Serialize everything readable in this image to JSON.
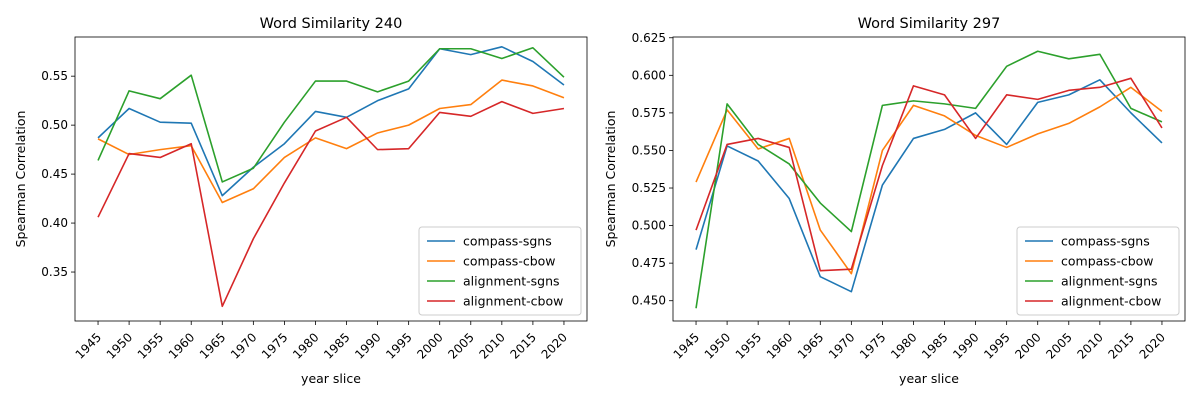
{
  "chart_data": [
    {
      "type": "line",
      "title": "Word Similarity 240",
      "xlabel": "year slice",
      "ylabel": "Spearman Correlation",
      "x": [
        1945,
        1950,
        1955,
        1960,
        1965,
        1970,
        1975,
        1980,
        1985,
        1990,
        1995,
        2000,
        2005,
        2010,
        2015,
        2020
      ],
      "ylim": [
        0.3,
        0.59
      ],
      "yticks": [
        0.35,
        0.4,
        0.45,
        0.5,
        0.55
      ],
      "ytick_labels": [
        "0.35",
        "0.40",
        "0.45",
        "0.50",
        "0.55"
      ],
      "legend": "lower-right",
      "grid": false,
      "series": [
        {
          "name": "compass-sgns",
          "color": "#1f77b4",
          "values": [
            0.487,
            0.517,
            0.503,
            0.502,
            0.428,
            0.457,
            0.481,
            0.514,
            0.508,
            0.525,
            0.537,
            0.578,
            0.572,
            0.58,
            0.565,
            0.541
          ]
        },
        {
          "name": "compass-cbow",
          "color": "#ff7f0e",
          "values": [
            0.486,
            0.47,
            0.475,
            0.479,
            0.421,
            0.435,
            0.467,
            0.487,
            0.476,
            0.492,
            0.5,
            0.517,
            0.521,
            0.546,
            0.54,
            0.528
          ]
        },
        {
          "name": "alignment-sgns",
          "color": "#2ca02c",
          "values": [
            0.464,
            0.535,
            0.527,
            0.551,
            0.442,
            0.456,
            0.503,
            0.545,
            0.545,
            0.534,
            0.545,
            0.578,
            0.578,
            0.568,
            0.579,
            0.549
          ]
        },
        {
          "name": "alignment-cbow",
          "color": "#d62728",
          "values": [
            0.406,
            0.471,
            0.467,
            0.481,
            0.315,
            0.384,
            0.441,
            0.494,
            0.508,
            0.475,
            0.476,
            0.513,
            0.509,
            0.524,
            0.512,
            0.517
          ]
        }
      ]
    },
    {
      "type": "line",
      "title": "Word Similarity 297",
      "xlabel": "year slice",
      "ylabel": "Spearman Correlation",
      "x": [
        1945,
        1950,
        1955,
        1960,
        1965,
        1970,
        1975,
        1980,
        1985,
        1990,
        1995,
        2000,
        2005,
        2010,
        2015,
        2020
      ],
      "ylim": [
        0.4365,
        0.6255
      ],
      "yticks": [
        0.45,
        0.475,
        0.5,
        0.525,
        0.55,
        0.575,
        0.6,
        0.625
      ],
      "ytick_labels": [
        "0.450",
        "0.475",
        "0.500",
        "0.525",
        "0.550",
        "0.575",
        "0.600",
        "0.625"
      ],
      "legend": "lower-right",
      "grid": false,
      "series": [
        {
          "name": "compass-sgns",
          "color": "#1f77b4",
          "values": [
            0.484,
            0.553,
            0.543,
            0.518,
            0.466,
            0.456,
            0.527,
            0.558,
            0.564,
            0.575,
            0.554,
            0.582,
            0.587,
            0.597,
            0.575,
            0.555
          ]
        },
        {
          "name": "compass-cbow",
          "color": "#ff7f0e",
          "values": [
            0.529,
            0.577,
            0.551,
            0.558,
            0.497,
            0.468,
            0.55,
            0.58,
            0.573,
            0.56,
            0.552,
            0.561,
            0.568,
            0.579,
            0.592,
            0.576
          ]
        },
        {
          "name": "alignment-sgns",
          "color": "#2ca02c",
          "values": [
            0.445,
            0.581,
            0.554,
            0.541,
            0.515,
            0.496,
            0.58,
            0.583,
            0.581,
            0.578,
            0.606,
            0.616,
            0.611,
            0.614,
            0.578,
            0.569
          ]
        },
        {
          "name": "alignment-cbow",
          "color": "#d62728",
          "values": [
            0.497,
            0.554,
            0.558,
            0.552,
            0.47,
            0.471,
            0.54,
            0.593,
            0.587,
            0.558,
            0.587,
            0.584,
            0.59,
            0.592,
            0.598,
            0.565
          ]
        }
      ]
    }
  ]
}
